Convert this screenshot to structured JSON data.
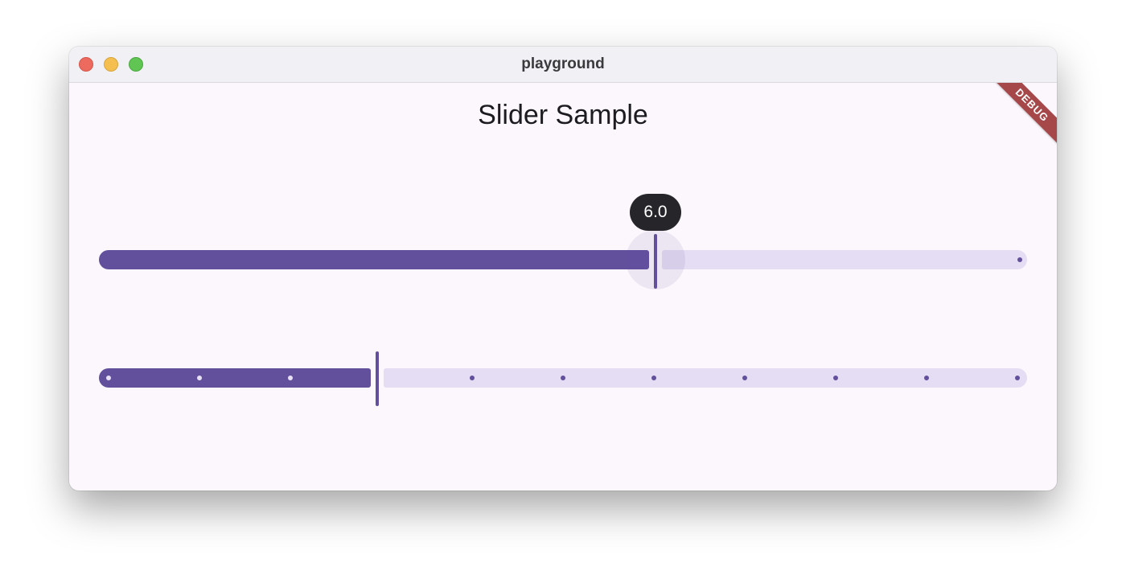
{
  "window": {
    "title": "playground",
    "controls": [
      "close",
      "minimize",
      "maximize"
    ]
  },
  "page": {
    "title": "Slider Sample",
    "debug_banner": "DEBUG"
  },
  "sliders": [
    {
      "name": "continuous-slider",
      "min": 0,
      "max": 10,
      "value": 6.0,
      "value_label": "6.0",
      "divisions": null
    },
    {
      "name": "discrete-slider",
      "min": 0,
      "max": 10,
      "value": 3,
      "divisions": 10
    }
  ],
  "colors": {
    "active_track": "#62509d",
    "inactive_track": "#e5ddf3",
    "value_label_bg": "#26262a",
    "debug_banner": "#a6474a"
  }
}
